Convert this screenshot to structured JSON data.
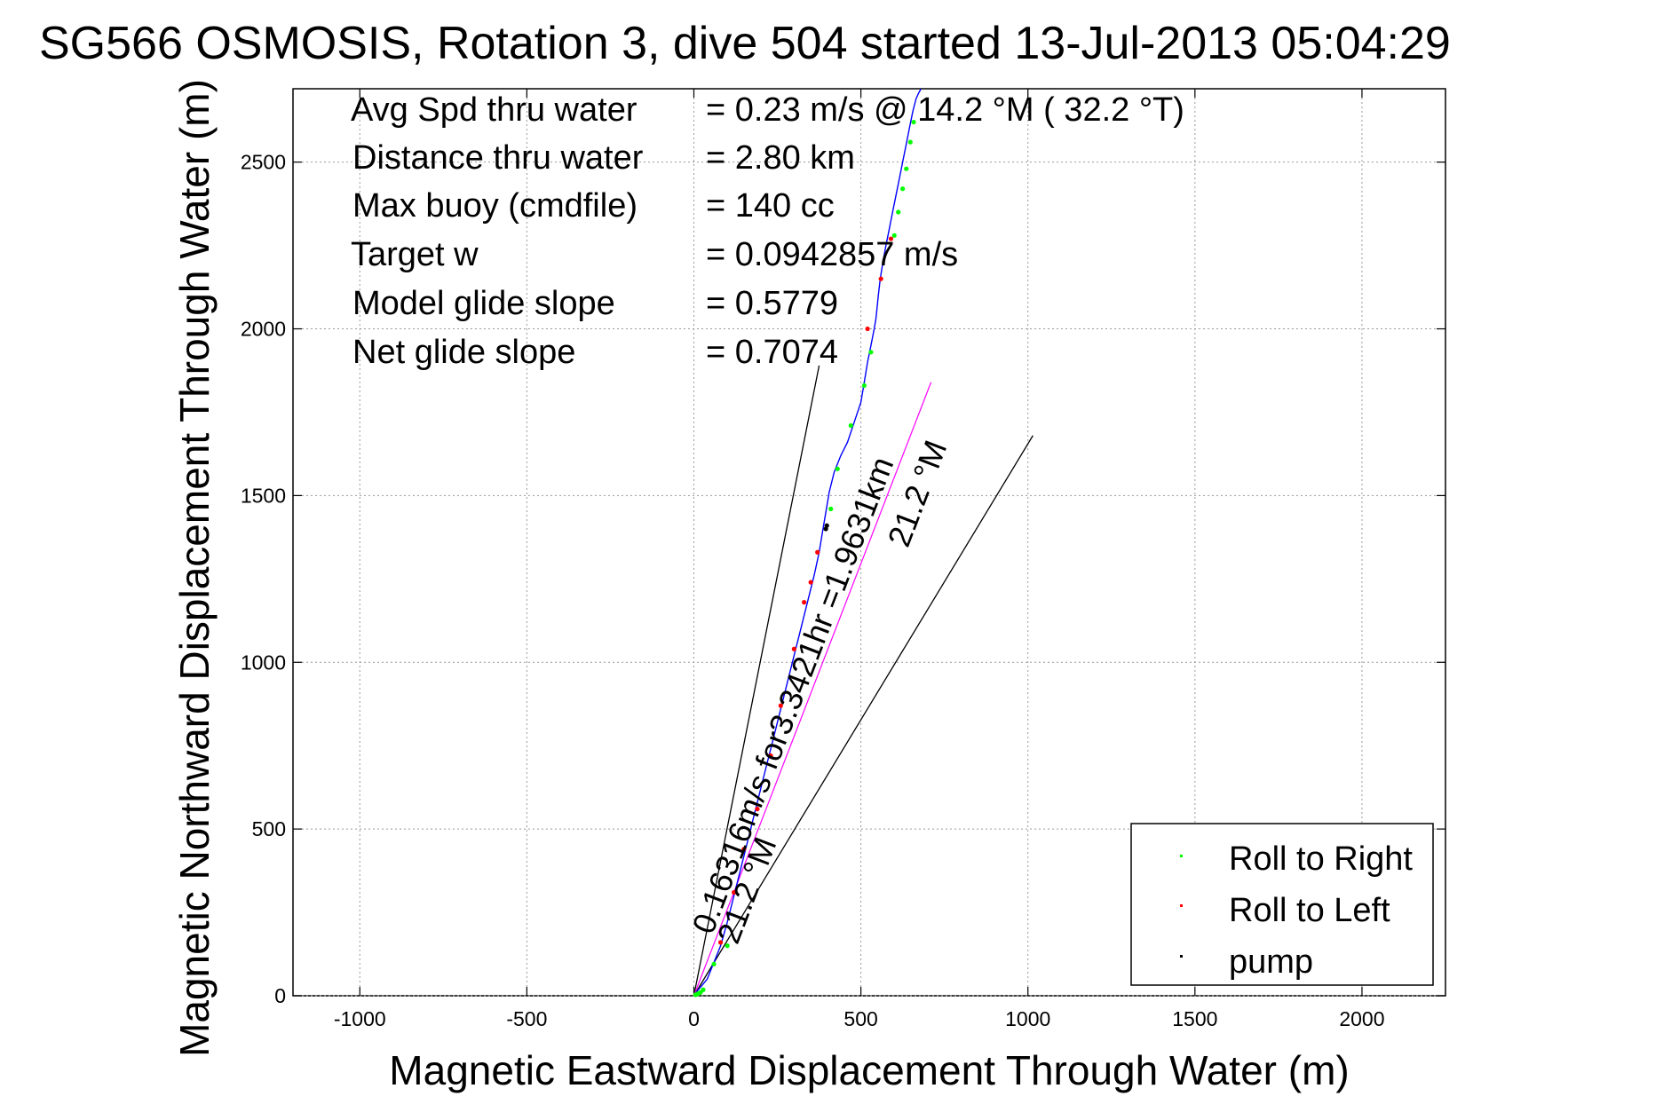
{
  "chart_data": {
    "type": "line",
    "title": "SG566 OSMOSIS, Rotation 3, dive 504 started 13-Jul-2013 05:04:29",
    "xlabel": "Magnetic Eastward Displacement Through Water (m)",
    "ylabel": "Magnetic Northward Displacement Through Water (m)",
    "xlim": [
      -1200,
      2250
    ],
    "ylim": [
      0,
      2720
    ],
    "xticks": [
      -1000,
      -500,
      0,
      500,
      1000,
      1500,
      2000
    ],
    "yticks": [
      0,
      500,
      1000,
      1500,
      2000,
      2500
    ],
    "grid": true,
    "legend_position": "bottom-right",
    "info_lines": [
      {
        "label": "Avg Spd thru water",
        "value": "=  0.23 m/s @  14.2 °M ( 32.2 °T)"
      },
      {
        "label": "Distance thru water",
        "value": "=  2.80 km"
      },
      {
        "label": "Max buoy (cmdfile)",
        "value": "= 140 cc"
      },
      {
        "label": "Target w",
        "value": "= 0.0942857 m/s"
      },
      {
        "label": "Model glide slope",
        "value": "= 0.5779"
      },
      {
        "label": "Net glide slope",
        "value": "= 0.7074"
      }
    ],
    "track": {
      "color": "#0000ff",
      "x": [
        0,
        15,
        40,
        60,
        80,
        100,
        120,
        140,
        160,
        180,
        200,
        220,
        240,
        260,
        280,
        300,
        320,
        340,
        360,
        375,
        385,
        395,
        405,
        420,
        440,
        460,
        480,
        500,
        510,
        520,
        530,
        540,
        545,
        548,
        552,
        558,
        566,
        575,
        585,
        595,
        605,
        615,
        625,
        635,
        645,
        655,
        665,
        672,
        680
      ],
      "y": [
        0,
        20,
        50,
        100,
        150,
        220,
        300,
        380,
        460,
        540,
        620,
        700,
        780,
        860,
        940,
        1020,
        1100,
        1180,
        1260,
        1330,
        1390,
        1450,
        1510,
        1570,
        1620,
        1660,
        1720,
        1780,
        1840,
        1900,
        1950,
        2000,
        2030,
        2060,
        2100,
        2150,
        2200,
        2250,
        2300,
        2350,
        2400,
        2450,
        2500,
        2550,
        2600,
        2650,
        2690,
        2705,
        2720
      ]
    },
    "heading_line": {
      "color": "#ff00ff",
      "from": [
        0,
        0
      ],
      "to": [
        710,
        1840
      ]
    },
    "envelope_lines": [
      {
        "color": "#000000",
        "from": [
          0,
          0
        ],
        "to": [
          375,
          1890
        ]
      },
      {
        "color": "#000000",
        "from": [
          0,
          0
        ],
        "to": [
          1015,
          1680
        ]
      }
    ],
    "series": [
      {
        "name": "Roll to Right",
        "color": "#00ff00",
        "points": [
          [
            5,
            3
          ],
          [
            12,
            6
          ],
          [
            20,
            10
          ],
          [
            28,
            18
          ],
          [
            60,
            95
          ],
          [
            100,
            150
          ],
          [
            600,
            2280
          ],
          [
            612,
            2350
          ],
          [
            625,
            2420
          ],
          [
            636,
            2480
          ],
          [
            648,
            2560
          ],
          [
            658,
            2620
          ],
          [
            530,
            1930
          ],
          [
            510,
            1830
          ],
          [
            470,
            1710
          ],
          [
            430,
            1580
          ],
          [
            410,
            1460
          ]
        ]
      },
      {
        "name": "Roll to Left",
        "color": "#ff0000",
        "points": [
          [
            80,
            160
          ],
          [
            120,
            310
          ],
          [
            150,
            440
          ],
          [
            190,
            560
          ],
          [
            230,
            720
          ],
          [
            260,
            870
          ],
          [
            300,
            1040
          ],
          [
            330,
            1180
          ],
          [
            350,
            1240
          ],
          [
            370,
            1330
          ],
          [
            520,
            2000
          ],
          [
            560,
            2150
          ],
          [
            590,
            2270
          ]
        ]
      },
      {
        "name": "pump",
        "color": "#000000",
        "points": [
          [
            395,
            1400
          ],
          [
            398,
            1410
          ]
        ]
      }
    ],
    "annotations": [
      {
        "text": "0.16316m/s for3.3421hr =1.9631km",
        "anchor": [
          55,
          180
        ],
        "angle_deg": -69
      },
      {
        "text": "21.2 °M",
        "anchor": [
          130,
          150
        ],
        "angle_deg": -69
      },
      {
        "text": "21.2 °M",
        "anchor": [
          640,
          1340
        ],
        "angle_deg": -69
      }
    ]
  }
}
